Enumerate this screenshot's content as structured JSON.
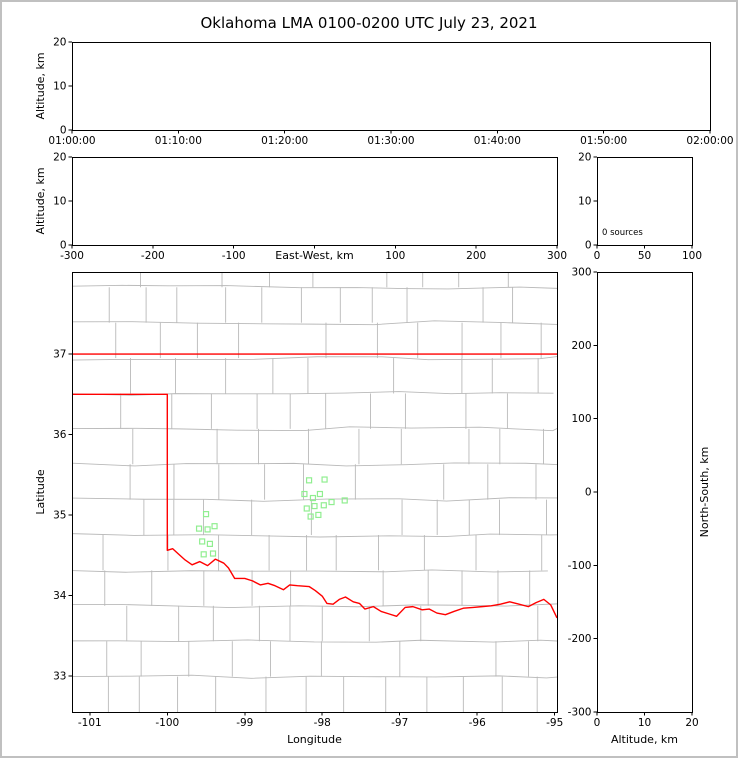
{
  "title": "Oklahoma LMA 0100-0200 UTC July 23, 2021",
  "colors": {
    "window_border": "#c0c0c0",
    "background": "#ffffff",
    "axis": "#000000",
    "county_lines": "#b9b9b9",
    "state_border": "#ff0000",
    "source_marker": "#90ee90"
  },
  "chart_data": [
    {
      "id": "time_height_panel",
      "type": "scatter",
      "ylabel": "Altitude, km",
      "xtick_labels": [
        "01:00:00",
        "01:10:00",
        "01:20:00",
        "01:30:00",
        "01:40:00",
        "01:50:00",
        "02:00:00"
      ],
      "ylim": [
        0,
        20
      ],
      "yticks": [
        0,
        10,
        20
      ],
      "points": []
    },
    {
      "id": "east_west_height_panel",
      "type": "scatter",
      "xlabel": "East-West, km",
      "ylabel": "Altitude, km",
      "xlim": [
        -300,
        300
      ],
      "xticks": [
        -300,
        -200,
        -100,
        0,
        100,
        200,
        300
      ],
      "xtick_labels": [
        "-300",
        "-200",
        "-100",
        "",
        "100",
        "200",
        "300"
      ],
      "ylim": [
        0,
        20
      ],
      "yticks": [
        0,
        10,
        20
      ],
      "points": []
    },
    {
      "id": "altitude_histogram_panel",
      "type": "line",
      "annotation": "0 sources",
      "xlim": [
        0,
        100
      ],
      "xticks": [
        0,
        50,
        100
      ],
      "xtick_labels": [
        "0",
        "50",
        "100"
      ],
      "ylim": [
        0,
        20
      ],
      "yticks": [
        0,
        10,
        20
      ],
      "points": []
    },
    {
      "id": "plan_view_map_panel",
      "type": "scatter",
      "xlabel": "Longitude",
      "ylabel": "Latitude",
      "xlim": [
        -101.23,
        -94.97
      ],
      "xticks": [
        -101,
        -100,
        -99,
        -98,
        -97,
        -96,
        -95
      ],
      "xtick_labels": [
        "-101",
        "-100",
        "-99",
        "-98",
        "-97",
        "-96",
        "-95"
      ],
      "ylim": [
        32.55,
        38.02
      ],
      "yticks": [
        33,
        34,
        35,
        36,
        37
      ],
      "marker": "open-square",
      "points": [
        [
          -98.17,
          35.43
        ],
        [
          -97.97,
          35.44
        ],
        [
          -98.23,
          35.26
        ],
        [
          -98.12,
          35.21
        ],
        [
          -98.03,
          35.26
        ],
        [
          -98.2,
          35.08
        ],
        [
          -98.1,
          35.11
        ],
        [
          -97.98,
          35.12
        ],
        [
          -97.88,
          35.16
        ],
        [
          -97.71,
          35.18
        ],
        [
          -98.15,
          34.98
        ],
        [
          -98.05,
          35.0
        ],
        [
          -99.5,
          35.01
        ],
        [
          -99.59,
          34.83
        ],
        [
          -99.48,
          34.82
        ],
        [
          -99.39,
          34.86
        ],
        [
          -99.55,
          34.67
        ],
        [
          -99.45,
          34.64
        ],
        [
          -99.53,
          34.51
        ],
        [
          -99.41,
          34.52
        ]
      ],
      "state_border": {
        "north": [
          [
            -101.23,
            37.0
          ],
          [
            -94.97,
            37.0
          ]
        ],
        "west_and_south": [
          [
            -101.23,
            36.5
          ],
          [
            -100.0,
            36.5
          ],
          [
            -100.0,
            34.56
          ],
          [
            -99.93,
            34.58
          ],
          [
            -99.84,
            34.5
          ],
          [
            -99.77,
            34.44
          ],
          [
            -99.68,
            34.38
          ],
          [
            -99.58,
            34.42
          ],
          [
            -99.48,
            34.37
          ],
          [
            -99.38,
            34.45
          ],
          [
            -99.27,
            34.4
          ],
          [
            -99.21,
            34.34
          ],
          [
            -99.13,
            34.21
          ],
          [
            -99.0,
            34.21
          ],
          [
            -98.9,
            34.18
          ],
          [
            -98.8,
            34.13
          ],
          [
            -98.7,
            34.15
          ],
          [
            -98.61,
            34.12
          ],
          [
            -98.5,
            34.07
          ],
          [
            -98.42,
            34.13
          ],
          [
            -98.32,
            34.12
          ],
          [
            -98.17,
            34.11
          ],
          [
            -98.09,
            34.06
          ],
          [
            -98.0,
            33.99
          ],
          [
            -97.94,
            33.9
          ],
          [
            -97.86,
            33.89
          ],
          [
            -97.78,
            33.95
          ],
          [
            -97.7,
            33.98
          ],
          [
            -97.6,
            33.92
          ],
          [
            -97.52,
            33.9
          ],
          [
            -97.45,
            33.83
          ],
          [
            -97.34,
            33.86
          ],
          [
            -97.24,
            33.8
          ],
          [
            -97.14,
            33.77
          ],
          [
            -97.04,
            33.74
          ],
          [
            -96.93,
            33.85
          ],
          [
            -96.83,
            33.86
          ],
          [
            -96.71,
            33.82
          ],
          [
            -96.62,
            33.83
          ],
          [
            -96.52,
            33.78
          ],
          [
            -96.41,
            33.76
          ],
          [
            -96.3,
            33.8
          ],
          [
            -96.18,
            33.84
          ],
          [
            -96.05,
            33.85
          ],
          [
            -95.94,
            33.86
          ],
          [
            -95.82,
            33.87
          ],
          [
            -95.7,
            33.89
          ],
          [
            -95.58,
            33.92
          ],
          [
            -95.46,
            33.89
          ],
          [
            -95.34,
            33.86
          ],
          [
            -95.24,
            33.91
          ],
          [
            -95.14,
            33.95
          ],
          [
            -95.05,
            33.88
          ],
          [
            -94.97,
            33.72
          ]
        ]
      }
    },
    {
      "id": "north_south_height_panel",
      "type": "scatter",
      "xlabel": "Altitude, km",
      "ylabel": "North-South, km",
      "xlim": [
        0,
        20
      ],
      "xticks": [
        0,
        10,
        20
      ],
      "xtick_labels": [
        "0",
        "10",
        "20"
      ],
      "ylim": [
        -300,
        300
      ],
      "yticks": [
        -300,
        -200,
        -100,
        0,
        100,
        200,
        300
      ],
      "points": []
    }
  ]
}
